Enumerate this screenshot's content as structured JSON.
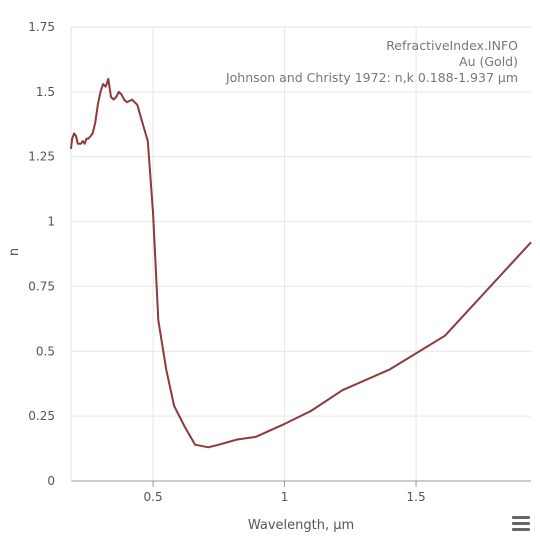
{
  "chart_data": {
    "type": "line",
    "title": "",
    "annotations": [
      "RefractiveIndex.INFO",
      "Au (Gold)",
      "Johnson and Christy 1972: n,k 0.188-1.937 µm"
    ],
    "xlabel": "Wavelength, µm",
    "ylabel": "n",
    "xlim": [
      0.188,
      1.937
    ],
    "ylim": [
      0,
      1.75
    ],
    "xticks": [
      0.5,
      1,
      1.5
    ],
    "xtick_labels": [
      "0.5",
      "1",
      "1.5"
    ],
    "yticks": [
      0,
      0.25,
      0.5,
      0.75,
      1,
      1.25,
      1.5,
      1.75
    ],
    "ytick_labels": [
      "0",
      "0.25",
      "0.5",
      "0.75",
      "1",
      "1.25",
      "1.5",
      "1.75"
    ],
    "grid": true,
    "series": [
      {
        "color": "#8b3a3a",
        "x": [
          0.188,
          0.192,
          0.2,
          0.207,
          0.214,
          0.22,
          0.226,
          0.233,
          0.24,
          0.247,
          0.254,
          0.263,
          0.27,
          0.28,
          0.29,
          0.3,
          0.31,
          0.32,
          0.33,
          0.34,
          0.35,
          0.36,
          0.37,
          0.38,
          0.39,
          0.4,
          0.42,
          0.44,
          0.46,
          0.48,
          0.5,
          0.52,
          0.55,
          0.58,
          0.62,
          0.66,
          0.71,
          0.75,
          0.82,
          0.89,
          1.0,
          1.1,
          1.22,
          1.4,
          1.61,
          1.937
        ],
        "y": [
          1.28,
          1.32,
          1.34,
          1.33,
          1.3,
          1.3,
          1.3,
          1.31,
          1.3,
          1.32,
          1.32,
          1.33,
          1.34,
          1.38,
          1.45,
          1.5,
          1.53,
          1.52,
          1.55,
          1.48,
          1.47,
          1.48,
          1.5,
          1.49,
          1.47,
          1.46,
          1.47,
          1.45,
          1.38,
          1.31,
          1.03,
          0.62,
          0.43,
          0.29,
          0.21,
          0.14,
          0.13,
          0.14,
          0.16,
          0.17,
          0.22,
          0.27,
          0.35,
          0.43,
          0.56,
          0.92
        ]
      }
    ]
  },
  "ui": {
    "menu_icon": "hamburger-menu-icon"
  }
}
